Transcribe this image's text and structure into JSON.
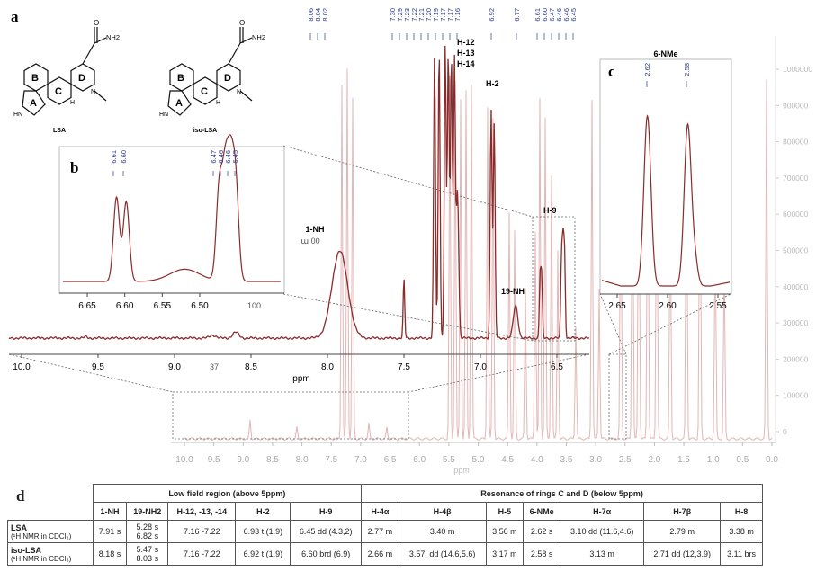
{
  "panels": {
    "a": "a",
    "b": "b",
    "c": "c",
    "d": "d"
  },
  "structures": [
    {
      "name": "LSA",
      "rings": [
        "A",
        "B",
        "C",
        "D"
      ],
      "amide": "NH2",
      "nh": "HN",
      "nme": "N",
      "h": "H"
    },
    {
      "name": "iso-LSA",
      "rings": [
        "A",
        "B",
        "C",
        "D"
      ],
      "amide": "NH2",
      "nh": "HN",
      "nme": "N",
      "h": "H"
    }
  ],
  "main_spectrum": {
    "xlabel": "ppm",
    "ticks": [
      "10.0",
      "9.5",
      "9.0",
      "8.5",
      "8.0",
      "7.5",
      "7.0",
      "6.5"
    ],
    "labels": [
      "1-NH",
      "H-12",
      "H-13",
      "H-14",
      "H-2",
      "19-NH",
      "H-9"
    ],
    "peak_labels_top": [
      "8.06",
      "8.04",
      "8.02",
      "7.30",
      "7.29",
      "7.23",
      "7.22",
      "7.21",
      "7.20",
      "7.19",
      "7.17",
      "7.17",
      "7.16",
      "6.92",
      "6.77",
      "6.61",
      "6.60",
      "6.47",
      "6.46",
      "6.46",
      "6.45"
    ],
    "stray_text": [
      "ա 00",
      "37",
      "100"
    ]
  },
  "full_spectrum": {
    "xlabel": "ppm",
    "ticks": [
      "10.0",
      "9.5",
      "9.0",
      "8.5",
      "8.0",
      "7.5",
      "7.0",
      "6.5",
      "6.0",
      "5.5",
      "5.0",
      "4.5",
      "4.0",
      "3.5",
      "3.0",
      "2.5",
      "2.0",
      "1.5",
      "1.0",
      "0.5",
      "0.0"
    ],
    "yticks": [
      "1000000",
      "900000",
      "800000",
      "700000",
      "600000",
      "500000",
      "400000",
      "300000",
      "200000",
      "100000",
      "0"
    ]
  },
  "inset_b": {
    "ticks": [
      "6.65",
      "6.60",
      "6.55",
      "6.50"
    ],
    "peak_labels": [
      "6.61",
      "6.60",
      "6.47",
      "6.46",
      "6.46",
      "6.45"
    ]
  },
  "inset_c": {
    "title": "6-NMe",
    "ticks": [
      "2.65",
      "2.60",
      "2.55"
    ],
    "peak_labels": [
      "2.62",
      "2.58"
    ]
  },
  "table": {
    "group_low": "Low field region (above 5ppm)",
    "group_high": "Resonance of rings C and D (below 5ppm)",
    "headers": [
      "1-NH",
      "19-NH2",
      "H-12, -13, -14",
      "H-2",
      "H-9",
      "H-4α",
      "H-4β",
      "H-5",
      "6-NMe",
      "H-7α",
      "H-7β",
      "H-8"
    ],
    "rows": [
      {
        "name": "LSA",
        "sub": "(¹H NMR in CDCl₃)",
        "cells": [
          "7.91 s",
          "5.28 s\n6.82 s",
          "7.16 -7.22",
          "6.93 t (1.9)",
          "6.45 dd (4.3,2)",
          "2.77 m",
          "3.40 m",
          "3.56 m",
          "2.62 s",
          "3.10 dd (11.6,4.6)",
          "2.79 m",
          "3.38 m"
        ]
      },
      {
        "name": "iso-LSA",
        "sub": "(¹H NMR in CDCl₃)",
        "cells": [
          "8.18 s",
          "5.47 s\n8.03 s",
          "7.16 -7.22",
          "6.92 t (1.9)",
          "6.60 brd (6.9)",
          "2.66 m",
          "3.57, dd (14.6,5.6)",
          "3.17 m",
          "2.58 s",
          "3.13 m",
          "2.71 dd (12,3.9)",
          "3.11 brs"
        ]
      }
    ]
  },
  "colors": {
    "spectrum": "#8b2a2a",
    "faint": "#e8c4c4",
    "label_blue": "#2b3a8c"
  }
}
